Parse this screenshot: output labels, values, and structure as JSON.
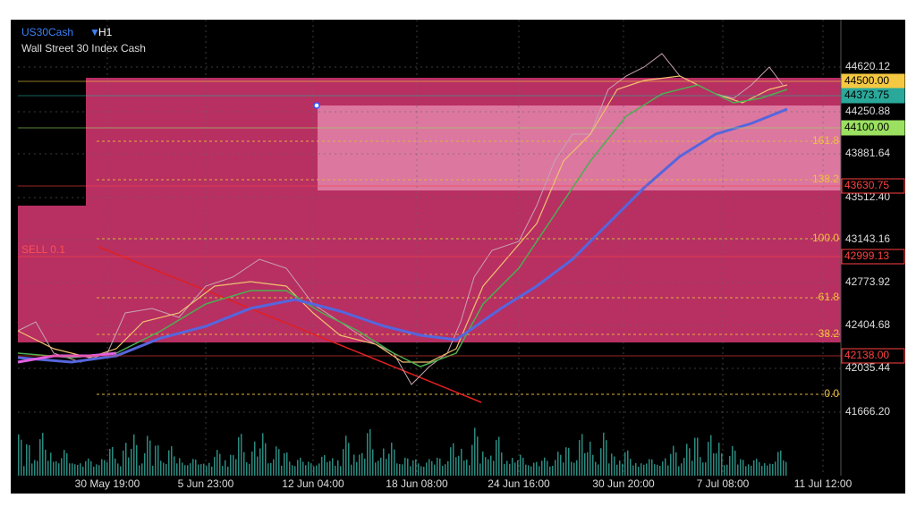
{
  "header": {
    "symbol": "US30Cash",
    "timeframe": "H1",
    "name": "Wall Street 30 Index Cash"
  },
  "order_label": "SELL 0.1",
  "price_axis": [
    "44620.12",
    "44250.88",
    "43881.64",
    "43512.40",
    "43143.16",
    "42773.92",
    "42404.68",
    "42035.44",
    "41666.20"
  ],
  "price_badges": [
    "44500.00",
    "44373.75",
    "44100.00",
    "43630.75",
    "42999.13",
    "42138.00"
  ],
  "fib_levels": [
    "161.8",
    "138.2",
    "100.0",
    "61.8",
    "38.2",
    "0.0"
  ],
  "time_axis": [
    "30 May 19:00",
    "5 Jun 23:00",
    "12 Jun 04:00",
    "18 Jun 08:00",
    "24 Jun 16:00",
    "30 Jun 20:00",
    "7 Jul 08:00",
    "11 Jul 12:00"
  ]
}
